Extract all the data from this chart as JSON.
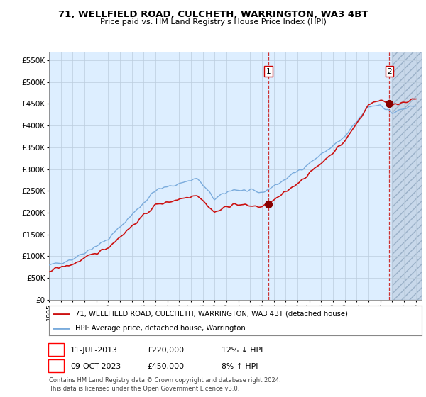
{
  "title": "71, WELLFIELD ROAD, CULCHETH, WARRINGTON, WA3 4BT",
  "subtitle": "Price paid vs. HM Land Registry's House Price Index (HPI)",
  "yticks": [
    0,
    50000,
    100000,
    150000,
    200000,
    250000,
    300000,
    350000,
    400000,
    450000,
    500000,
    550000
  ],
  "ytick_labels": [
    "£0",
    "£50K",
    "£100K",
    "£150K",
    "£200K",
    "£250K",
    "£300K",
    "£350K",
    "£400K",
    "£450K",
    "£500K",
    "£550K"
  ],
  "xlim_start": 1995.0,
  "xlim_end": 2026.5,
  "ylim_min": 0,
  "ylim_max": 570000,
  "hpi_color": "#7aabdc",
  "price_color": "#cc1111",
  "background_color": "#ddeeff",
  "grid_color": "#bbccdd",
  "marker1_date": 2013.53,
  "marker1_price": 220000,
  "marker1_label": "11-JUL-2013",
  "marker1_text": "£220,000",
  "marker1_info": "12% ↓ HPI",
  "marker2_date": 2023.77,
  "marker2_price": 450000,
  "marker2_label": "09-OCT-2023",
  "marker2_text": "£450,000",
  "marker2_info": "8% ↑ HPI",
  "legend_line1": "71, WELLFIELD ROAD, CULCHETH, WARRINGTON, WA3 4BT (detached house)",
  "legend_line2": "HPI: Average price, detached house, Warrington",
  "footnote": "Contains HM Land Registry data © Crown copyright and database right 2024.\nThis data is licensed under the Open Government Licence v3.0.",
  "xtick_years": [
    1995,
    1996,
    1997,
    1998,
    1999,
    2000,
    2001,
    2002,
    2003,
    2004,
    2005,
    2006,
    2007,
    2008,
    2009,
    2010,
    2011,
    2012,
    2013,
    2014,
    2015,
    2016,
    2017,
    2018,
    2019,
    2020,
    2021,
    2022,
    2023,
    2024,
    2025,
    2026
  ]
}
